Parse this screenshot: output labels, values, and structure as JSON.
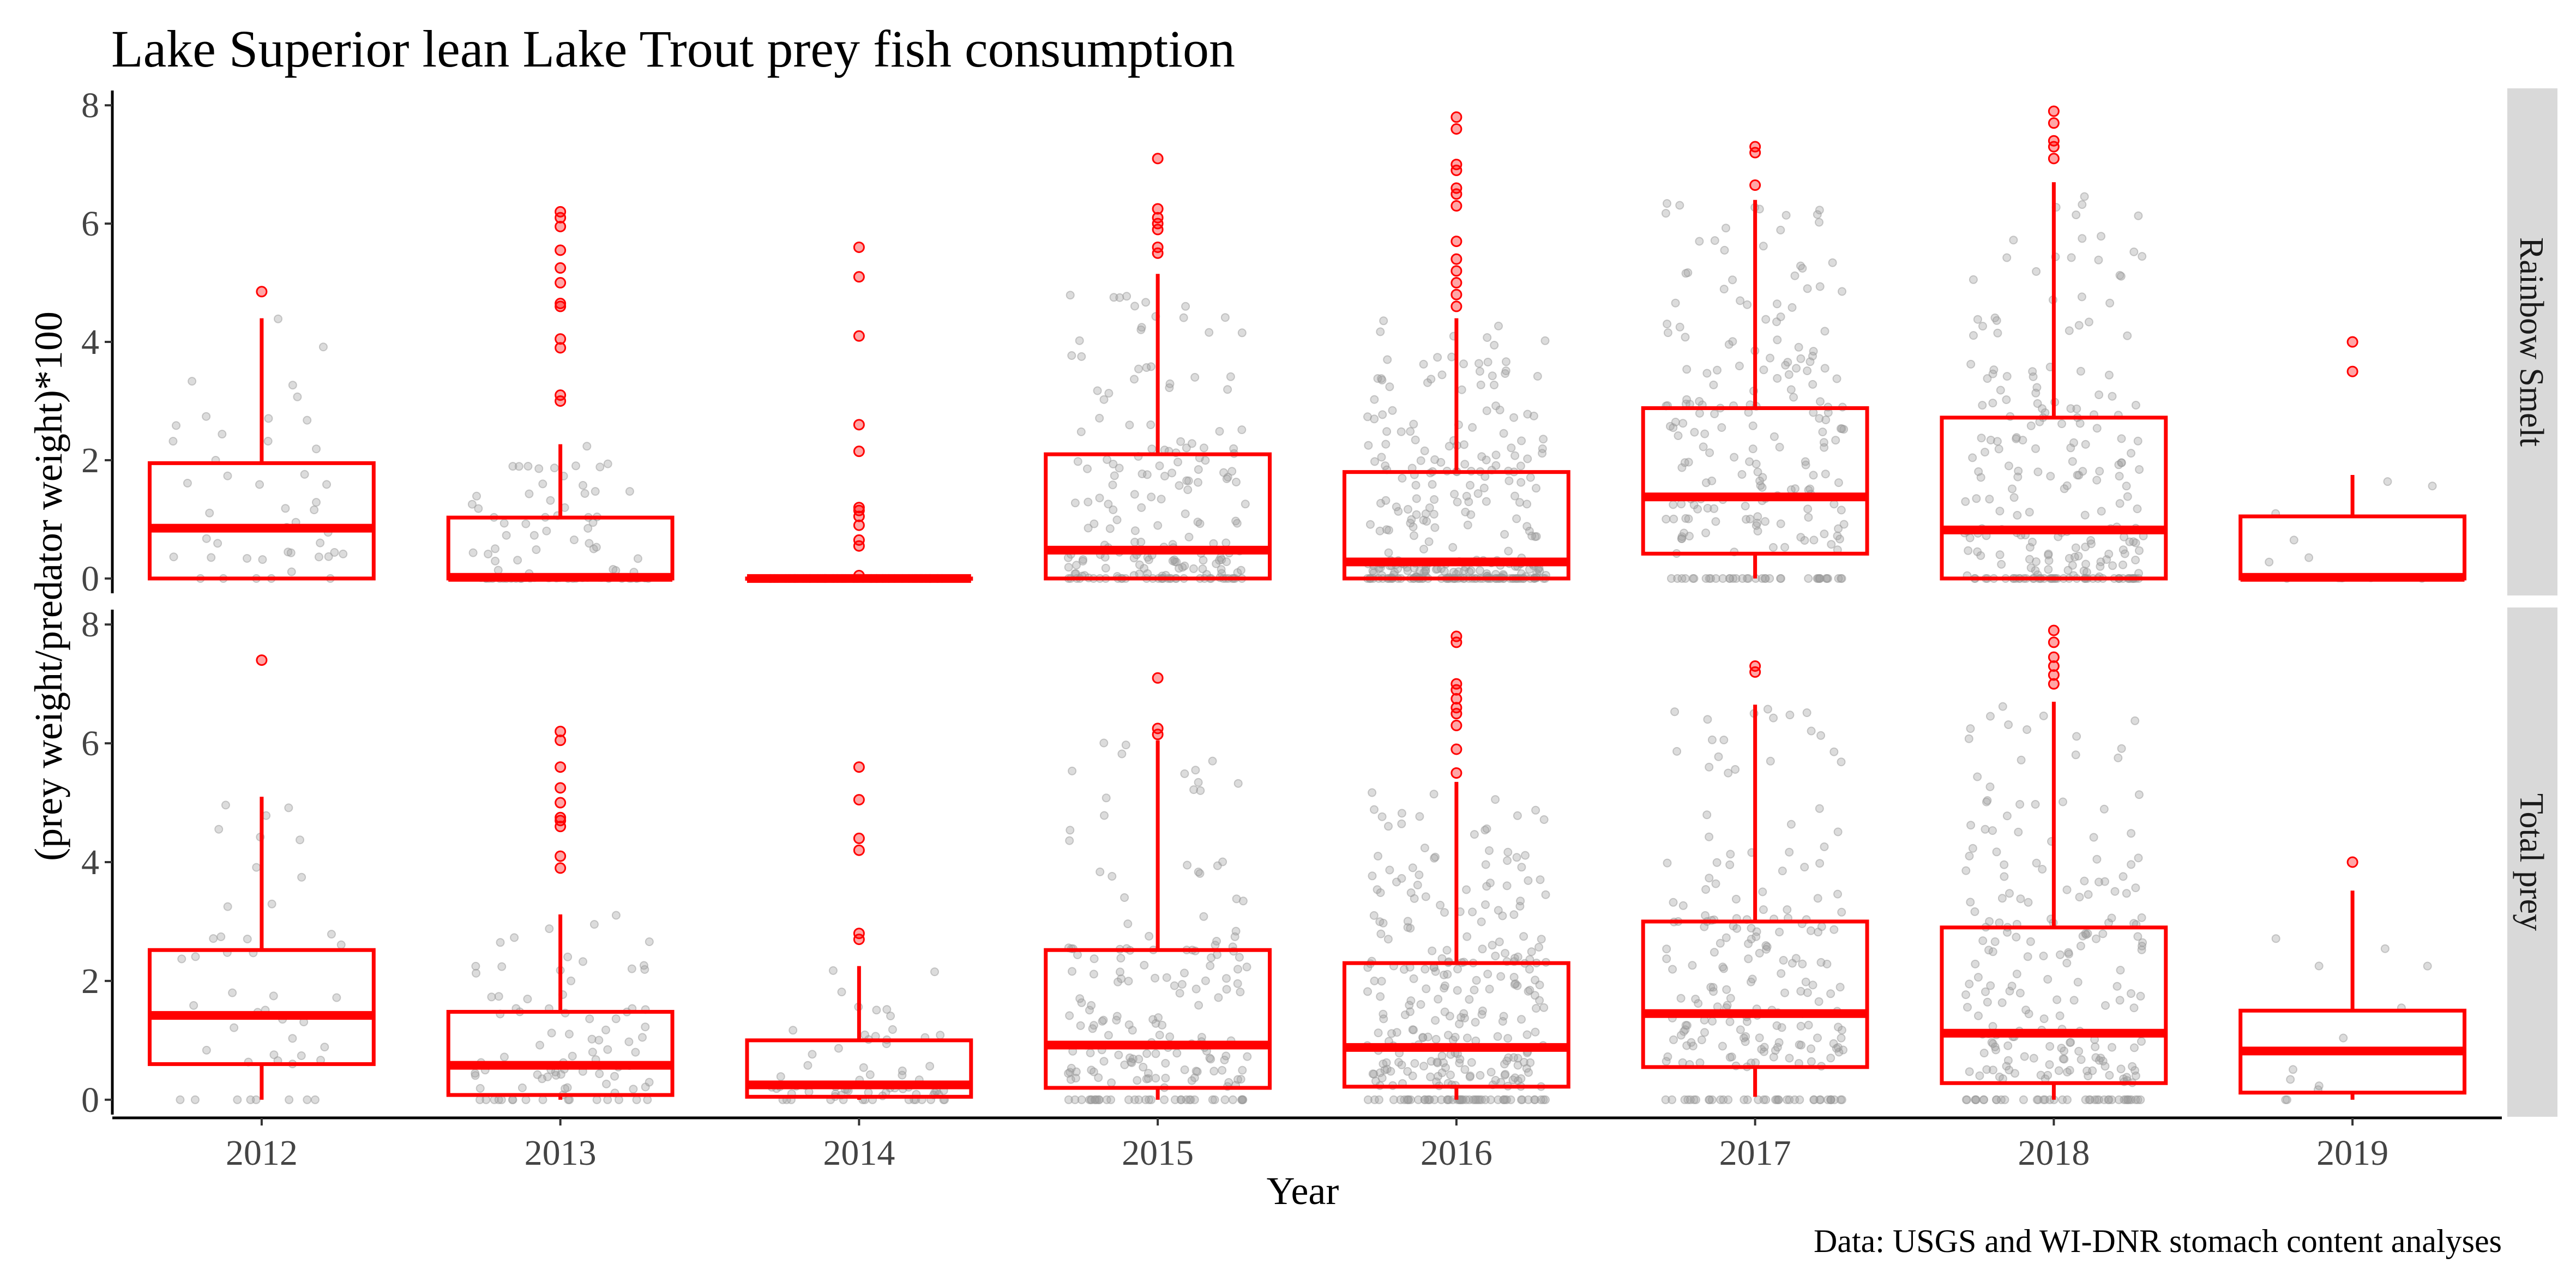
{
  "chart_data": {
    "type": "boxplot",
    "title": "Lake Superior lean Lake Trout prey fish consumption",
    "xlabel": "Year",
    "ylabel": "(prey weight/predator weight)*100",
    "caption": "Data: USGS and WI-DNR stomach content analyses",
    "categories": [
      "2012",
      "2013",
      "2014",
      "2015",
      "2016",
      "2017",
      "2018",
      "2019"
    ],
    "ylim": [
      -0.25,
      8.25
    ],
    "yticks": [
      0,
      2,
      4,
      6,
      8
    ],
    "grid": false,
    "colors": {
      "box": "#ff0000",
      "points": "#9a9a9a",
      "outliers": "#ff0000",
      "strip": "#d9d9d9"
    },
    "panels": [
      {
        "name": "Rainbow Smelt",
        "boxes": [
          {
            "year": "2012",
            "whisker_low": 0,
            "q1": 0,
            "median": 0.85,
            "q3": 1.95,
            "whisker_high": 4.4,
            "outliers": [
              4.85
            ],
            "points": 45
          },
          {
            "year": "2013",
            "whisker_low": 0,
            "q1": 0,
            "median": 0.02,
            "q3": 1.03,
            "whisker_high": 2.27,
            "outliers": [
              3.0,
              3.1,
              3.9,
              4.05,
              4.6,
              4.65,
              5.0,
              5.25,
              5.55,
              5.95,
              6.1,
              6.2
            ],
            "points": 90
          },
          {
            "year": "2014",
            "whisker_low": 0,
            "q1": 0,
            "median": 0.0,
            "q3": 0.0,
            "whisker_high": 0.0,
            "outliers": [
              0.05,
              0.55,
              0.65,
              0.9,
              1.05,
              1.15,
              1.2,
              2.15,
              2.6,
              4.1,
              5.1,
              5.6
            ],
            "points": 70
          },
          {
            "year": "2015",
            "whisker_low": 0,
            "q1": 0,
            "median": 0.48,
            "q3": 2.1,
            "whisker_high": 5.15,
            "outliers": [
              5.5,
              5.6,
              5.9,
              6.0,
              6.1,
              6.25,
              7.1
            ],
            "points": 190
          },
          {
            "year": "2016",
            "whisker_low": 0,
            "q1": 0,
            "median": 0.28,
            "q3": 1.8,
            "whisker_high": 4.4,
            "outliers": [
              4.6,
              4.8,
              5.0,
              5.2,
              5.4,
              5.7,
              6.3,
              6.5,
              6.6,
              6.9,
              7.0,
              7.6,
              7.8
            ],
            "points": 300
          },
          {
            "year": "2017",
            "whisker_low": 0,
            "q1": 0.42,
            "median": 1.38,
            "q3": 2.88,
            "whisker_high": 6.4,
            "outliers": [
              6.65,
              7.2,
              7.3
            ],
            "points": 220
          },
          {
            "year": "2018",
            "whisker_low": 0,
            "q1": 0,
            "median": 0.82,
            "q3": 2.72,
            "whisker_high": 6.7,
            "outliers": [
              7.1,
              7.3,
              7.4,
              7.7,
              7.9
            ],
            "points": 230
          },
          {
            "year": "2019",
            "whisker_low": 0,
            "q1": 0,
            "median": 0.02,
            "q3": 1.05,
            "whisker_high": 1.75,
            "outliers": [
              3.5,
              4.0
            ],
            "points": 12
          }
        ]
      },
      {
        "name": "Total prey",
        "boxes": [
          {
            "year": "2012",
            "whisker_low": 0,
            "q1": 0.6,
            "median": 1.42,
            "q3": 2.52,
            "whisker_high": 5.1,
            "outliers": [
              7.4
            ],
            "points": 45
          },
          {
            "year": "2013",
            "whisker_low": 0,
            "q1": 0.08,
            "median": 0.58,
            "q3": 1.48,
            "whisker_high": 3.12,
            "outliers": [
              3.9,
              4.1,
              4.6,
              4.7,
              4.75,
              5.0,
              5.25,
              5.6,
              6.05,
              6.2
            ],
            "points": 90
          },
          {
            "year": "2014",
            "whisker_low": 0,
            "q1": 0.05,
            "median": 0.25,
            "q3": 1.0,
            "whisker_high": 2.25,
            "outliers": [
              2.7,
              2.8,
              4.2,
              4.4,
              5.05,
              5.6
            ],
            "points": 70
          },
          {
            "year": "2015",
            "whisker_low": 0,
            "q1": 0.2,
            "median": 0.92,
            "q3": 2.52,
            "whisker_high": 6.05,
            "outliers": [
              6.15,
              6.25,
              7.1
            ],
            "points": 190
          },
          {
            "year": "2016",
            "whisker_low": 0,
            "q1": 0.22,
            "median": 0.88,
            "q3": 2.3,
            "whisker_high": 5.35,
            "outliers": [
              5.5,
              5.9,
              6.3,
              6.5,
              6.6,
              6.75,
              6.9,
              7.0,
              7.7,
              7.8
            ],
            "points": 300
          },
          {
            "year": "2017",
            "whisker_low": 0.05,
            "q1": 0.55,
            "median": 1.45,
            "q3": 3.0,
            "whisker_high": 6.65,
            "outliers": [
              7.2,
              7.3
            ],
            "points": 220
          },
          {
            "year": "2018",
            "whisker_low": 0,
            "q1": 0.28,
            "median": 1.12,
            "q3": 2.9,
            "whisker_high": 6.7,
            "outliers": [
              7.0,
              7.15,
              7.3,
              7.45,
              7.7,
              7.9
            ],
            "points": 230
          },
          {
            "year": "2019",
            "whisker_low": 0,
            "q1": 0.12,
            "median": 0.82,
            "q3": 1.5,
            "whisker_high": 3.52,
            "outliers": [
              4.0
            ],
            "points": 12
          }
        ]
      }
    ]
  }
}
